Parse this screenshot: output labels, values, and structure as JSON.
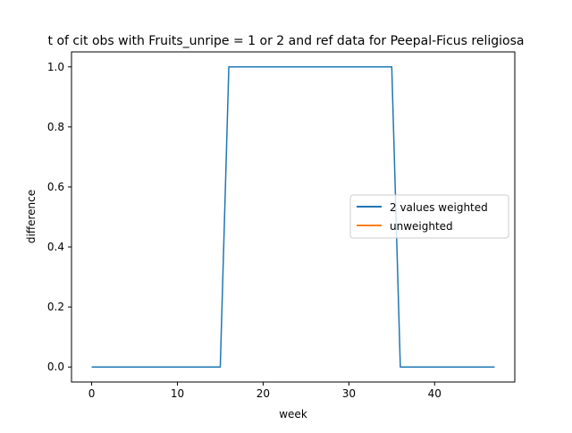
{
  "chart_data": {
    "type": "line",
    "title": "t of cit obs with Fruits_unripe = 1 or 2 and ref data for Peepal-Ficus religiosa",
    "xlabel": "week",
    "ylabel": "difference",
    "xlim": [
      -2.35,
      49.35
    ],
    "ylim": [
      -0.05,
      1.05
    ],
    "xticks": [
      0,
      10,
      20,
      30,
      40
    ],
    "yticks": [
      0.0,
      0.2,
      0.4,
      0.6,
      0.8,
      1.0
    ],
    "xtick_labels": [
      "0",
      "10",
      "20",
      "30",
      "40"
    ],
    "ytick_labels": [
      "0.0",
      "0.2",
      "0.4",
      "0.6",
      "0.8",
      "1.0"
    ],
    "grid": false,
    "legend_position": "center-right",
    "series": [
      {
        "name": "2 values weighted",
        "color": "#1f77b4",
        "x": [
          0,
          1,
          2,
          3,
          4,
          5,
          6,
          7,
          8,
          9,
          10,
          11,
          12,
          13,
          14,
          15,
          16,
          17,
          18,
          19,
          20,
          21,
          22,
          23,
          24,
          25,
          26,
          27,
          28,
          29,
          30,
          31,
          32,
          33,
          34,
          35,
          36,
          37,
          38,
          39,
          40,
          41,
          42,
          43,
          44,
          45,
          46,
          47
        ],
        "y": [
          0,
          0,
          0,
          0,
          0,
          0,
          0,
          0,
          0,
          0,
          0,
          0,
          0,
          0,
          0,
          0,
          1,
          1,
          1,
          1,
          1,
          1,
          1,
          1,
          1,
          1,
          1,
          1,
          1,
          1,
          1,
          1,
          1,
          1,
          1,
          1,
          0,
          0,
          0,
          0,
          0,
          0,
          0,
          0,
          0,
          0,
          0,
          0
        ]
      },
      {
        "name": "unweighted",
        "color": "#ff7f0e",
        "x": [],
        "y": []
      }
    ]
  }
}
